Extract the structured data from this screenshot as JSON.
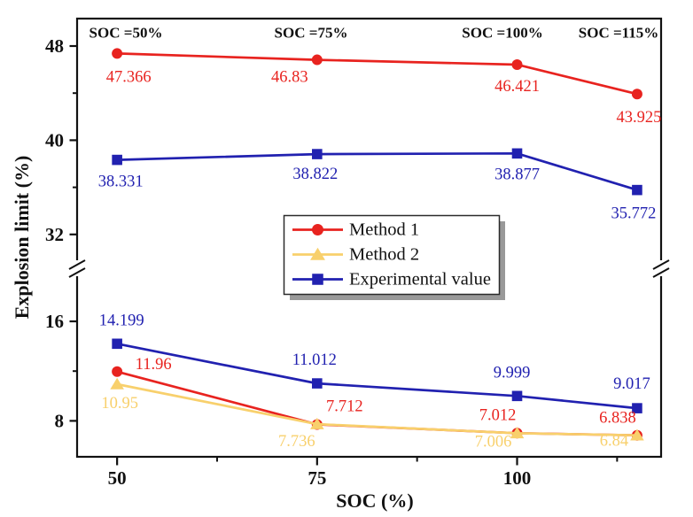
{
  "chart_data": {
    "type": "line",
    "title": "",
    "xlabel": "SOC (%)",
    "ylabel": "Explosion limit (%)",
    "grid": false,
    "x": [
      50,
      75,
      100,
      115
    ],
    "x_axis": {
      "range": [
        45,
        118
      ],
      "major_ticks": [
        "50",
        "75",
        "100"
      ],
      "major_tick_values": [
        50,
        75,
        100
      ],
      "minor_tick_values": [
        62.5,
        87.5,
        112.5
      ]
    },
    "y_axis": {
      "broken": true,
      "upper_section": {
        "range": [
          29.9,
          50.3
        ],
        "major_ticks": [
          "48",
          "40",
          "32"
        ],
        "major_tick_values": [
          48,
          40,
          32
        ],
        "minor_tick_values": [
          44,
          36
        ]
      },
      "lower_section": {
        "range": [
          5.1,
          19.6
        ],
        "major_ticks": [
          "16",
          "8"
        ],
        "major_tick_values": [
          16,
          8
        ],
        "minor_tick_values": [
          12
        ]
      }
    },
    "annotations": [
      "SOC =50%",
      "SOC =75%",
      "SOC =100%",
      "SOC =115%"
    ],
    "legend": {
      "position": "center",
      "border": true,
      "shadow": true
    },
    "colors": {
      "axis": "#111111",
      "legend_shadow": "#999999",
      "legend_border": "#2b2b2b"
    },
    "series": [
      {
        "name": "Method 1",
        "color": "#e8231f",
        "marker": "circle",
        "segments": [
          {
            "section": "upper",
            "values": [
              47.366,
              46.83,
              46.421,
              43.925
            ],
            "labels": [
              "47.366",
              "46.83",
              "46.421",
              "43.925"
            ],
            "label_offsets": [
              [
                13,
                27
              ],
              [
                -31,
                20
              ],
              [
                0,
                25
              ],
              [
                2,
                27
              ]
            ]
          },
          {
            "section": "lower",
            "values": [
              11.96,
              7.712,
              7.012,
              6.838
            ],
            "labels": [
              "11.96",
              "7.712",
              "7.012",
              "6.838"
            ],
            "label_offsets": [
              [
                41,
                -8
              ],
              [
                31,
                -20
              ],
              [
                -22,
                -20
              ],
              [
                -22,
                -19
              ]
            ]
          }
        ]
      },
      {
        "name": "Method 2",
        "color": "#f8d06c",
        "marker": "triangle",
        "segments": [
          {
            "section": "lower",
            "values": [
              10.95,
              7.736,
              7.006,
              6.84
            ],
            "labels": [
              "10.95",
              "7.736",
              "7.006",
              "6.84"
            ],
            "label_offsets": [
              [
                3,
                22
              ],
              [
                -23,
                20
              ],
              [
                -27,
                10
              ],
              [
                -26,
                7
              ]
            ]
          }
        ]
      },
      {
        "name": "Experimental value",
        "color": "#2121b0",
        "marker": "square",
        "segments": [
          {
            "section": "upper",
            "values": [
              38.331,
              38.822,
              38.877,
              35.772
            ],
            "labels": [
              "38.331",
              "38.822",
              "38.877",
              "35.772"
            ],
            "label_offsets": [
              [
                4,
                25
              ],
              [
                -2,
                23
              ],
              [
                0,
                24
              ],
              [
                -4,
                27
              ]
            ]
          },
          {
            "section": "lower",
            "values": [
              14.199,
              11.012,
              9.999,
              9.017
            ],
            "labels": [
              "14.199",
              "11.012",
              "9.999",
              "9.017"
            ],
            "label_offsets": [
              [
                5,
                -26
              ],
              [
                -3,
                -26
              ],
              [
                -6,
                -26
              ],
              [
                -6,
                -27
              ]
            ]
          }
        ]
      }
    ]
  }
}
